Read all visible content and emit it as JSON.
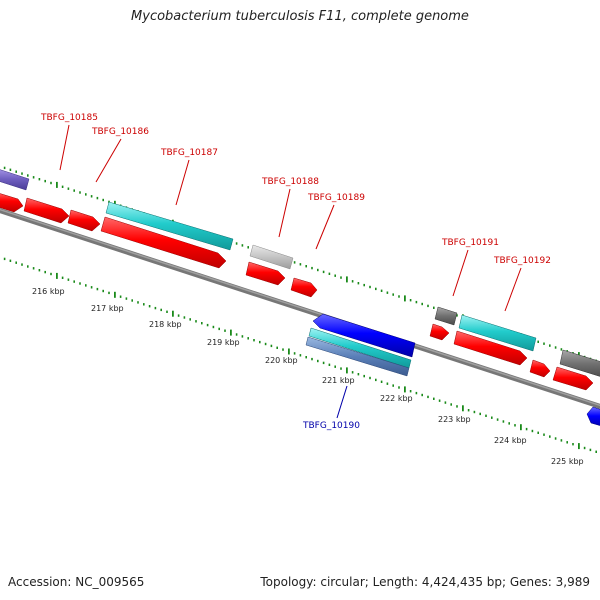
{
  "title": "Mycobacterium tuberculosis F11, complete genome",
  "footer": {
    "accession": "Accession: NC_009565",
    "summary": "Topology: circular; Length: 4,424,435 bp; Genes: 3,989"
  },
  "colors": {
    "forward_gene": "#ff0000",
    "rna_feature": "#00c8c8",
    "reverse_gene": "#0000ff",
    "pseudo_gene": "#808080",
    "light_gene": "#c0c0c0",
    "purple_gene": "#7060c0",
    "backbone": "#808080",
    "tick": "#1a8a1a",
    "label_forward": "#cc0000",
    "label_reverse": "#0000aa"
  },
  "kbp_labels": [
    "216 kbp",
    "217 kbp",
    "218 kbp",
    "219 kbp",
    "220 kbp",
    "221 kbp",
    "222 kbp",
    "223 kbp",
    "224 kbp",
    "225 kbp"
  ],
  "gene_labels": [
    {
      "id": "TBFG_10185",
      "strand": "forward"
    },
    {
      "id": "TBFG_10186",
      "strand": "forward"
    },
    {
      "id": "TBFG_10187",
      "strand": "forward"
    },
    {
      "id": "TBFG_10188",
      "strand": "forward"
    },
    {
      "id": "TBFG_10189",
      "strand": "forward"
    },
    {
      "id": "TBFG_10190",
      "strand": "reverse"
    },
    {
      "id": "TBFG_10191",
      "strand": "forward"
    },
    {
      "id": "TBFG_10192",
      "strand": "forward"
    }
  ]
}
